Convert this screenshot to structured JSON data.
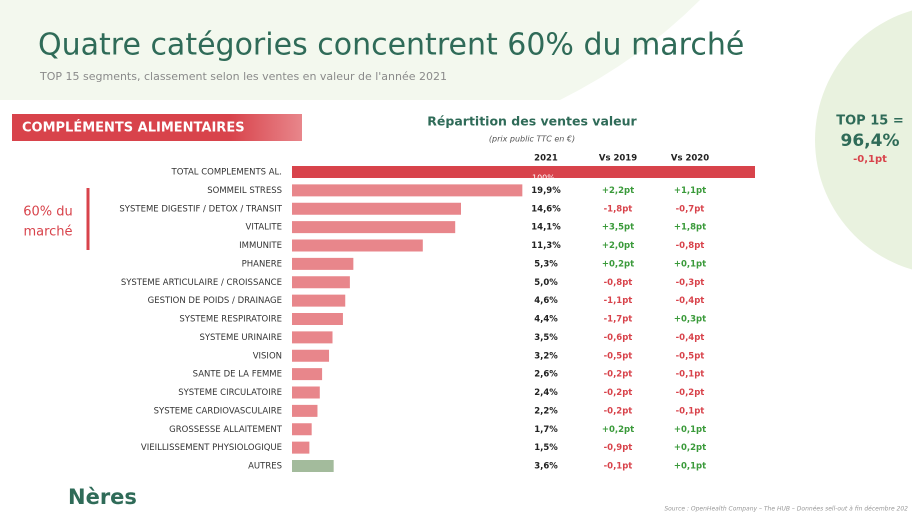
{
  "chart_data": {
    "type": "bar",
    "title": "Quatre catégories concentrent 60% du marché",
    "subtitle": "TOP 15 segments, classement selon les ventes en valeur de l'année 2021",
    "section": "COMPLÉMENTS ALIMENTAIRES",
    "chart_title": "Répartition des ventes valeur",
    "chart_subtitle": "(prix public TTC en €)",
    "column_headers": [
      "2021",
      "Vs 2019",
      "Vs 2020"
    ],
    "note_lines": [
      "60% du",
      "marché"
    ],
    "top15": {
      "label": "TOP 15 =",
      "value": "96,4%",
      "change": "-0,1pt"
    },
    "logo": "Nères",
    "source": "Source : OpenHealth Company – The HUB – Données sell-out à fin décembre 202",
    "xlim": [
      0,
      40
    ],
    "categories": [
      "TOTAL COMPLEMENTS AL.",
      "SOMMEIL STRESS",
      "SYSTEME DIGESTIF / DETOX / TRANSIT",
      "VITALITE",
      "IMMUNITE",
      "PHANERE",
      "SYSTEME ARTICULAIRE / CROISSANCE",
      "GESTION DE POIDS / DRAINAGE",
      "SYSTEME RESPIRATOIRE",
      "SYSTEME URINAIRE",
      "VISION",
      "SANTE DE LA FEMME",
      "SYSTEME CIRCULATOIRE",
      "SYSTEME CARDIOVASCULAIRE",
      "GROSSESSE ALLAITEMENT",
      "VIEILLISSEMENT PHYSIOLOGIQUE",
      "AUTRES"
    ],
    "values": [
      100,
      19.9,
      14.6,
      14.1,
      11.3,
      5.3,
      5.0,
      4.6,
      4.4,
      3.5,
      3.2,
      2.6,
      2.4,
      2.2,
      1.7,
      1.5,
      3.6
    ],
    "value_labels": [
      "100%",
      "19,9%",
      "14,6%",
      "14,1%",
      "11,3%",
      "5,3%",
      "5,0%",
      "4,6%",
      "4,4%",
      "3,5%",
      "3,2%",
      "2,6%",
      "2,4%",
      "2,2%",
      "1,7%",
      "1,5%",
      "3,6%"
    ],
    "colors": [
      "#d8434b",
      "#e8868b",
      "#e8868b",
      "#e8868b",
      "#e8868b",
      "#e8868b",
      "#e8868b",
      "#e8868b",
      "#e8868b",
      "#e8868b",
      "#e8868b",
      "#e8868b",
      "#e8868b",
      "#e8868b",
      "#e8868b",
      "#e8868b",
      "#a3bb9c"
    ],
    "vs2019": [
      null,
      "+2,2pt",
      "-1,8pt",
      "+3,5pt",
      "+2,0pt",
      "+0,2pt",
      "-0,8pt",
      "-1,1pt",
      "-1,7pt",
      "-0,6pt",
      "-0,5pt",
      "-0,2pt",
      "-0,2pt",
      "-0,2pt",
      "+0,2pt",
      "-0,9pt",
      "-0,1pt"
    ],
    "vs2020": [
      null,
      "+1,1pt",
      "-0,7pt",
      "+1,8pt",
      "-0,8pt",
      "+0,1pt",
      "-0,3pt",
      "-0,4pt",
      "+0,3pt",
      "-0,4pt",
      "-0,5pt",
      "-0,1pt",
      "-0,2pt",
      "-0,1pt",
      "+0,1pt",
      "+0,2pt",
      "+0,1pt"
    ]
  }
}
